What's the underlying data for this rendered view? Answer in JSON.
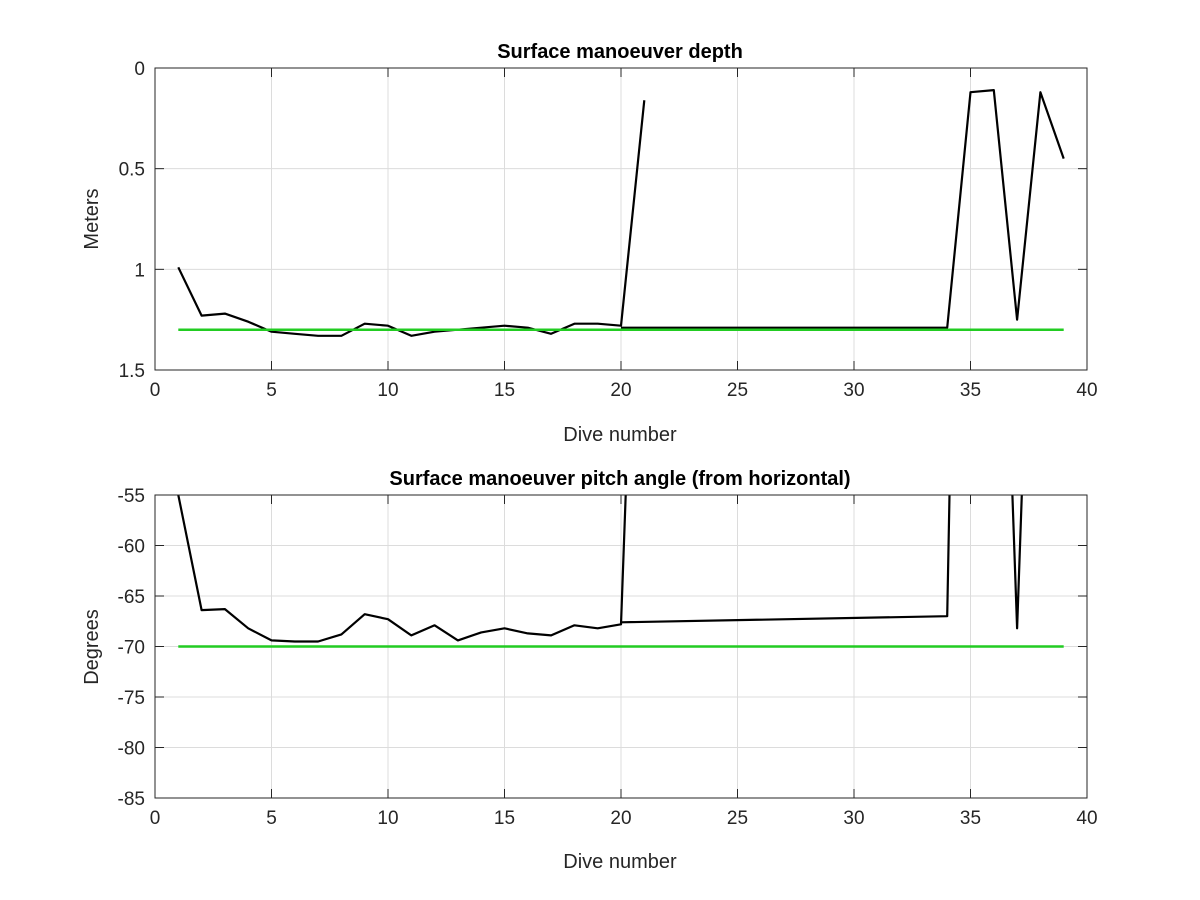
{
  "colors": {
    "data_line": "#000000",
    "reference_line": "#22cc22"
  },
  "chart_data": [
    {
      "type": "line",
      "title": "Surface manoeuver depth",
      "xlabel": "Dive number",
      "ylabel": "Meters",
      "xlim": [
        0,
        40
      ],
      "ylim": [
        0,
        1.5
      ],
      "y_reversed": true,
      "grid": true,
      "xticks": [
        0,
        5,
        10,
        15,
        20,
        25,
        30,
        35,
        40
      ],
      "yticks": [
        0,
        0.5,
        1,
        1.5
      ],
      "xtick_labels": [
        "0",
        "5",
        "10",
        "15",
        "20",
        "25",
        "30",
        "35",
        "40"
      ],
      "ytick_labels": [
        "0",
        "0.5",
        "1",
        "1.5"
      ],
      "series": [
        {
          "x": [
            1,
            2,
            3,
            4,
            5,
            6,
            7,
            8,
            9,
            10,
            11,
            12,
            13,
            14,
            15,
            16,
            17,
            18,
            19,
            20,
            21
          ],
          "y": [
            0.99,
            1.23,
            1.22,
            1.26,
            1.31,
            1.32,
            1.33,
            1.33,
            1.27,
            1.28,
            1.33,
            1.31,
            1.3,
            1.29,
            1.28,
            1.29,
            1.32,
            1.27,
            1.27,
            1.28,
            0.16
          ],
          "color": "#000000"
        },
        {
          "x": [
            20,
            34,
            35,
            36,
            37,
            38,
            39
          ],
          "y": [
            1.29,
            1.29,
            0.12,
            0.11,
            1.25,
            0.12,
            0.45
          ],
          "color": "#000000"
        },
        {
          "x": [
            1,
            39
          ],
          "y": [
            1.3,
            1.3
          ],
          "color": "#22cc22"
        }
      ]
    },
    {
      "type": "line",
      "title": "Surface manoeuver pitch angle (from horizontal)",
      "xlabel": "Dive number",
      "ylabel": "Degrees",
      "xlim": [
        0,
        40
      ],
      "ylim": [
        -85,
        -55
      ],
      "grid": true,
      "xticks": [
        0,
        5,
        10,
        15,
        20,
        25,
        30,
        35,
        40
      ],
      "yticks": [
        -55,
        -60,
        -65,
        -70,
        -75,
        -80,
        -85
      ],
      "xtick_labels": [
        "0",
        "5",
        "10",
        "15",
        "20",
        "25",
        "30",
        "35",
        "40"
      ],
      "ytick_labels": [
        "-55",
        "-60",
        "-65",
        "-70",
        "-75",
        "-80",
        "-85"
      ],
      "series": [
        {
          "x": [
            1,
            2,
            3,
            4,
            5,
            6,
            7,
            8,
            9,
            10,
            11,
            12,
            13,
            14,
            15,
            16,
            17,
            18,
            19,
            20,
            20.2
          ],
          "y": [
            -55,
            -66.4,
            -66.3,
            -68.2,
            -69.4,
            -69.5,
            -69.5,
            -68.8,
            -66.8,
            -67.3,
            -68.9,
            -67.9,
            -69.4,
            -68.6,
            -68.2,
            -68.7,
            -68.9,
            -67.9,
            -68.2,
            -67.8,
            -55
          ],
          "color": "#000000"
        },
        {
          "x": [
            20,
            34,
            34.1
          ],
          "y": [
            -67.6,
            -67.0,
            -55
          ],
          "color": "#000000"
        },
        {
          "x": [
            36.8,
            37,
            37.2
          ],
          "y": [
            -55,
            -68.2,
            -55
          ],
          "color": "#000000"
        },
        {
          "x": [
            1,
            39
          ],
          "y": [
            -70,
            -70
          ],
          "color": "#22cc22"
        }
      ]
    }
  ]
}
